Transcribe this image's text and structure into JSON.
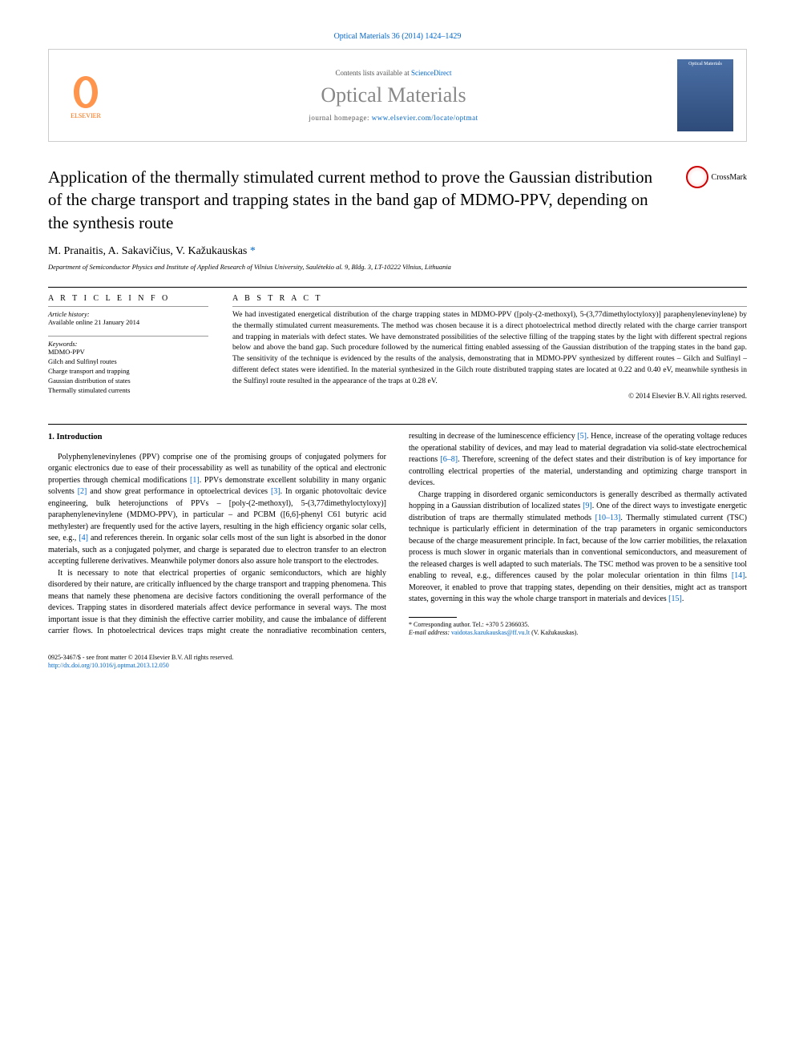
{
  "header": {
    "citation": "Optical Materials 36 (2014) 1424–1429",
    "contents_prefix": "Contents lists available at ",
    "contents_link": "ScienceDirect",
    "journal_name": "Optical Materials",
    "homepage_prefix": "journal homepage: ",
    "homepage_url": "www.elsevier.com/locate/optmat",
    "publisher_label": "ELSEVIER",
    "cover_label": "Optical Materials"
  },
  "crossmark_label": "CrossMark",
  "title": "Application of the thermally stimulated current method to prove the Gaussian distribution of the charge transport and trapping states in the band gap of MDMO-PPV, depending on the synthesis route",
  "authors_line": "M. Pranaitis, A. Sakavičius, V. Kažukauskas",
  "corr_marker": "*",
  "affiliation": "Department of Semiconductor Physics and Institute of Applied Research of Vilnius University, Saulėtekio al. 9, Bldg. 3, LT-10222 Vilnius, Lithuania",
  "info": {
    "heading_info": "A R T I C L E   I N F O",
    "history_label": "Article history:",
    "history_line": "Available online 21 January 2014",
    "keywords_label": "Keywords:",
    "keywords": [
      "MDMO-PPV",
      "Gilch and Sulfinyl routes",
      "Charge transport and trapping",
      "Gaussian distribution of states",
      "Thermally stimulated currents"
    ]
  },
  "abstract": {
    "heading": "A B S T R A C T",
    "text": "We had investigated energetical distribution of the charge trapping states in MDMO-PPV ([poly-(2-methoxyl), 5-(3,77dimethyloctyloxy)] paraphenylenevinylene) by the thermally stimulated current measurements. The method was chosen because it is a direct photoelectrical method directly related with the charge carrier transport and trapping in materials with defect states. We have demonstrated possibilities of the selective filling of the trapping states by the light with different spectral regions below and above the band gap. Such procedure followed by the numerical fitting enabled assessing of the Gaussian distribution of the trapping states in the band gap. The sensitivity of the technique is evidenced by the results of the analysis, demonstrating that in MDMO-PPV synthesized by different routes – Gilch and Sulfinyl – different defect states were identified. In the material synthesized in the Gilch route distributed trapping states are located at 0.22 and 0.40 eV, meanwhile synthesis in the Sulfinyl route resulted in the appearance of the traps at 0.28 eV.",
    "copyright": "© 2014 Elsevier B.V. All rights reserved."
  },
  "sections": {
    "intro_heading": "1. Introduction",
    "para1": "Polyphenylenevinylenes (PPV) comprise one of the promising groups of conjugated polymers for organic electronics due to ease of their processability as well as tunability of the optical and electronic properties through chemical modifications [1]. PPVs demonstrate excellent solubility in many organic solvents [2] and show great performance in optoelectrical devices [3]. In organic photovoltaic device engineering, bulk heterojunctions of PPVs – [poly-(2-methoxyl), 5-(3,77dimethyloctyloxy)] paraphenylenevinylene (MDMO-PPV), in particular – and PCBM ([6,6]-phenyl C61 butyric acid methylester) are frequently used for the active layers, resulting in the high efficiency organic solar cells, see, e.g., [4] and references therein. In organic solar cells most of the sun light is absorbed in the donor materials, such as a conjugated polymer, and charge is separated due to electron transfer to an electron accepting fullerene derivatives. Meanwhile polymer donors also assure hole transport to the electrodes.",
    "para2": "It is necessary to note that electrical properties of organic semiconductors, which are highly disordered by their nature, are critically influenced by the charge transport and trapping phenomena. This means that namely these phenomena are decisive factors conditioning the overall performance of the devices. Trapping states in disordered materials affect device performance in several ways. The most important issue is that they diminish the effective carrier mobility, and cause the imbalance of different carrier flows. In photoelectrical devices traps might create the nonradiative recombination centers, resulting in decrease of the luminescence efficiency [5]. Hence, increase of the operating voltage reduces the operational stability of devices, and may lead to material degradation via solid-state electrochemical reactions [6–8]. Therefore, screening of the defect states and their distribution is of key importance for controlling electrical properties of the material, understanding and optimizing charge transport in devices.",
    "para3": "Charge trapping in disordered organic semiconductors is generally described as thermally activated hopping in a Gaussian distribution of localized states [9]. One of the direct ways to investigate energetic distribution of traps are thermally stimulated methods [10–13]. Thermally stimulated current (TSC) technique is particularly efficient in determination of the trap parameters in organic semiconductors because of the charge measurement principle. In fact, because of the low carrier mobilities, the relaxation process is much slower in organic materials than in conventional semiconductors, and measurement of the released charges is well adapted to such materials. The TSC method was proven to be a sensitive tool enabling to reveal, e.g., differences caused by the polar molecular orientation in thin films [14]. Moreover, it enabled to prove that trapping states, depending on their densities, might act as transport states, governing in this way the whole charge transport in materials and devices [15]."
  },
  "footnote": {
    "corr_line": "* Corresponding author. Tel.: +370 5 2366035.",
    "email_label": "E-mail address:",
    "email": "vaidotas.kazukauskas@ff.vu.lt",
    "email_suffix": "(V. Kažukauskas)."
  },
  "footer": {
    "line1": "0925-3467/$ - see front matter © 2014 Elsevier B.V. All rights reserved.",
    "doi": "http://dx.doi.org/10.1016/j.optmat.2013.12.050"
  },
  "colors": {
    "link": "#0066cc",
    "publisher": "#ff6600",
    "journal_gray": "#888888"
  }
}
